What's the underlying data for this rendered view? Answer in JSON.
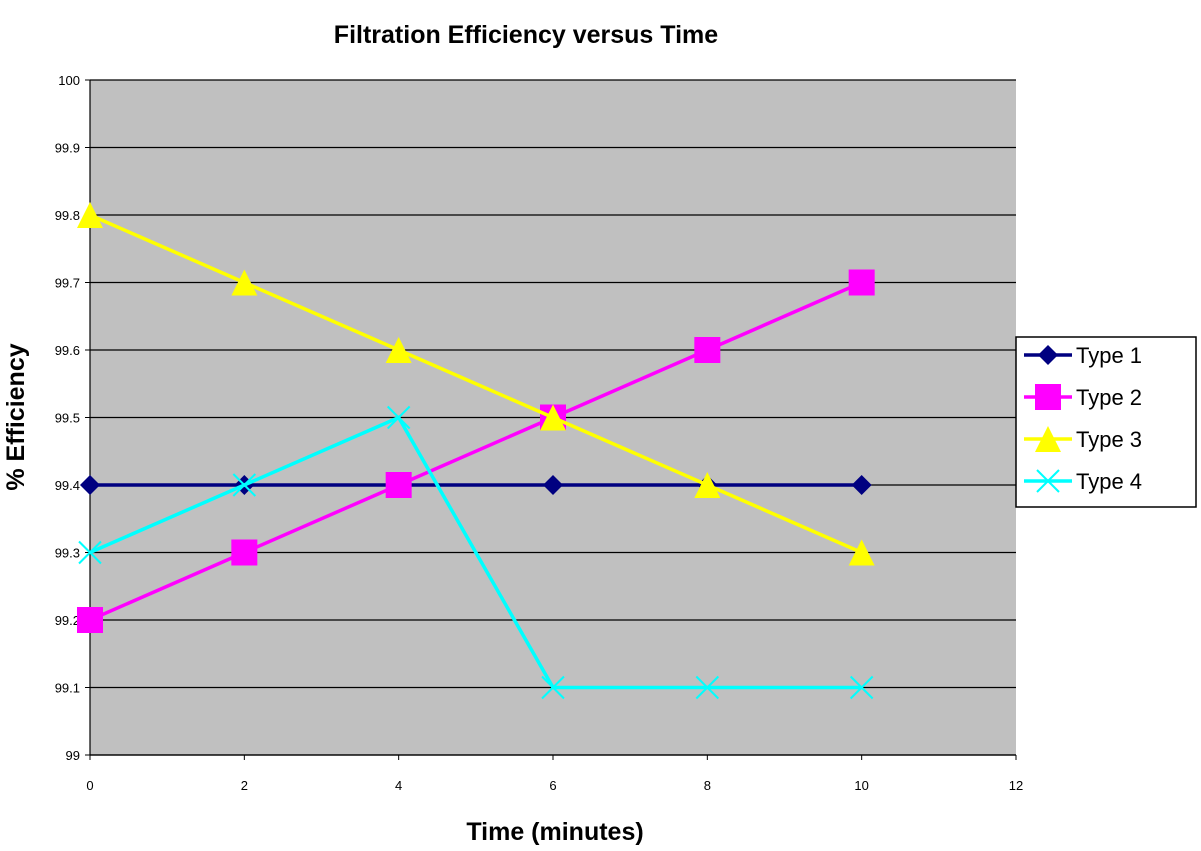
{
  "colors": {
    "plot_background": "#c0c0c0",
    "gridline": "#000000",
    "axis": "#000000"
  },
  "chart_data": {
    "type": "line",
    "title": "Filtration Efficiency versus Time",
    "xlabel": "Time (minutes)",
    "ylabel": "% Efficiency",
    "xlim": [
      0,
      12
    ],
    "ylim": [
      99,
      100
    ],
    "xticks": [
      "0",
      "2",
      "4",
      "6",
      "8",
      "10",
      "12"
    ],
    "yticks": [
      "99",
      "99.1",
      "99.2",
      "99.3",
      "99.4",
      "99.5",
      "99.6",
      "99.7",
      "99.8",
      "99.9",
      "100"
    ],
    "grid": "horizontal",
    "legend_position": "right",
    "x": [
      0,
      2,
      4,
      6,
      8,
      10
    ],
    "series": [
      {
        "name": "Type 1",
        "values": [
          99.4,
          99.4,
          99.4,
          99.4,
          99.4,
          99.4
        ],
        "color": "#000080",
        "marker": "diamond"
      },
      {
        "name": "Type 2",
        "values": [
          99.2,
          99.3,
          99.4,
          99.5,
          99.6,
          99.7
        ],
        "color": "#ff00ff",
        "marker": "square"
      },
      {
        "name": "Type 3",
        "values": [
          99.8,
          99.7,
          99.6,
          99.5,
          99.4,
          99.3
        ],
        "color": "#ffff00",
        "marker": "triangle"
      },
      {
        "name": "Type 4",
        "values": [
          99.3,
          99.4,
          99.5,
          99.1,
          99.1,
          99.1
        ],
        "color": "#00ffff",
        "marker": "x"
      }
    ]
  }
}
